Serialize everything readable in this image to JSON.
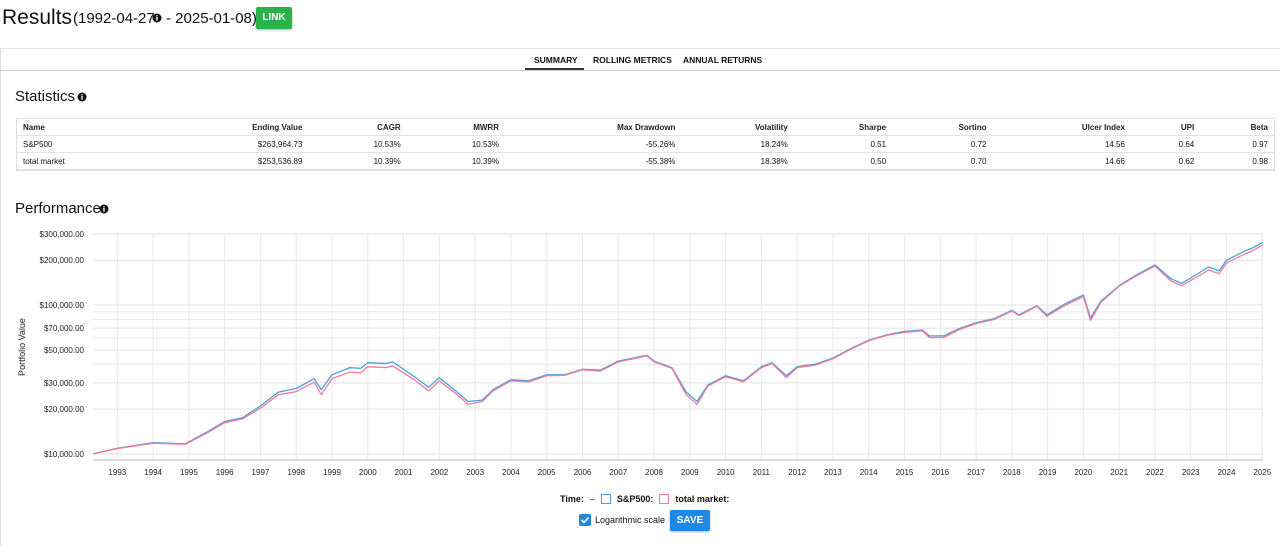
{
  "header": {
    "title": "Results",
    "range_start": "(1992-04-27",
    "range_end": "- 2025-01-08)",
    "link_button": "LINK"
  },
  "tabs": [
    "SUMMARY",
    "ROLLING METRICS",
    "ANNUAL RETURNS"
  ],
  "statistics": {
    "title": "Statistics",
    "table": {
      "columns": [
        "Name",
        "Ending Value",
        "CAGR",
        "MWRR",
        "Max Drawdown",
        "Volatility",
        "Sharpe",
        "Sortino",
        "Ulcer Index",
        "UPI",
        "Beta"
      ],
      "rows": [
        [
          "S&P500",
          "$263,964.73",
          "10.53%",
          "10.53%",
          "-55.26%",
          "18.24%",
          "0.51",
          "0.72",
          "14.56",
          "0.64",
          "0.97"
        ],
        [
          "total market",
          "$253,536.89",
          "10.39%",
          "10.39%",
          "-55.38%",
          "18.38%",
          "0.50",
          "0.70",
          "14.66",
          "0.62",
          "0.98"
        ]
      ]
    }
  },
  "performance": {
    "title": "Performance"
  },
  "chart_data": {
    "type": "line",
    "y_label": "Portfolio Value",
    "log_scale": true,
    "grid": true,
    "x": [
      1992.32,
      1993,
      1994,
      1994.9,
      1995.5,
      1996,
      1996.5,
      1997,
      1997.5,
      1998,
      1998.5,
      1998.7,
      1999,
      1999.5,
      1999.8,
      2000,
      2000.5,
      2000.7,
      2001,
      2001.3,
      2001.7,
      2002,
      2002.5,
      2002.8,
      2003.2,
      2003.5,
      2004,
      2004.5,
      2005,
      2005.5,
      2006,
      2006.5,
      2007,
      2007.8,
      2008,
      2008.5,
      2008.9,
      2009.2,
      2009.5,
      2010,
      2010.5,
      2011,
      2011.3,
      2011.7,
      2012,
      2012.5,
      2013,
      2013.5,
      2014,
      2014.5,
      2015,
      2015.5,
      2015.7,
      2016.1,
      2016.5,
      2017,
      2017.5,
      2018,
      2018.2,
      2018.7,
      2018.98,
      2019.5,
      2020,
      2020.2,
      2020.5,
      2021,
      2021.5,
      2022,
      2022.45,
      2022.75,
      2023,
      2023.5,
      2023.8,
      2024,
      2024.5,
      2024.7,
      2025.02
    ],
    "series": [
      {
        "name": "S&P500:",
        "color": "#4a9fe0",
        "values": [
          10000,
          10900,
          11900,
          11700,
          14000,
          16500,
          17500,
          21000,
          26000,
          27500,
          32000,
          27000,
          34000,
          38000,
          37500,
          41000,
          40500,
          41500,
          37000,
          33000,
          28000,
          32500,
          26000,
          22500,
          23000,
          27000,
          31500,
          31000,
          34000,
          34000,
          37000,
          36500,
          42000,
          46000,
          42000,
          38000,
          26000,
          22500,
          29000,
          33500,
          31000,
          38500,
          41000,
          33500,
          38500,
          40000,
          44000,
          51000,
          58000,
          63000,
          66500,
          68000,
          62000,
          62000,
          69000,
          76000,
          81000,
          92000,
          86000,
          99000,
          86000,
          102000,
          117000,
          82000,
          107000,
          135000,
          160000,
          186000,
          150000,
          140000,
          152000,
          180000,
          170000,
          200000,
          230000,
          240000,
          263965
        ]
      },
      {
        "name": "total market:",
        "color": "#f27a9b",
        "values": [
          10000,
          10850,
          11800,
          11600,
          13800,
          16200,
          17200,
          20300,
          25000,
          26200,
          30300,
          25000,
          32000,
          35500,
          35000,
          38500,
          38000,
          39000,
          35000,
          31500,
          26500,
          31000,
          25000,
          21500,
          22500,
          26500,
          31000,
          30500,
          33500,
          33700,
          36700,
          36000,
          41500,
          45500,
          41500,
          37500,
          25000,
          21500,
          28500,
          33000,
          30500,
          38000,
          40500,
          32500,
          38000,
          39500,
          43500,
          50500,
          57500,
          62500,
          65500,
          67000,
          60500,
          60500,
          68000,
          75000,
          80000,
          91000,
          85000,
          98000,
          84000,
          100000,
          114000,
          79000,
          105000,
          134000,
          158000,
          183000,
          145000,
          135000,
          146000,
          172000,
          162000,
          192000,
          220000,
          230000,
          253537
        ]
      }
    ],
    "xlim": [
      1992.32,
      2025.02
    ],
    "xticks": [
      1993,
      1994,
      1995,
      1996,
      1997,
      1998,
      1999,
      2000,
      2001,
      2002,
      2003,
      2004,
      2005,
      2006,
      2007,
      2008,
      2009,
      2010,
      2011,
      2012,
      2013,
      2014,
      2015,
      2016,
      2017,
      2018,
      2019,
      2020,
      2021,
      2022,
      2023,
      2024,
      2025
    ],
    "ylim": [
      9100,
      300000
    ],
    "yticks": [
      {
        "value": 10000,
        "label": "$10,000.00"
      },
      {
        "value": 20000,
        "label": "$20,000.00"
      },
      {
        "value": 30000,
        "label": "$30,000.00"
      },
      {
        "value": 50000,
        "label": "$50,000.00"
      },
      {
        "value": 70000,
        "label": "$70,000.00"
      },
      {
        "value": 100000,
        "label": "$100,000.00"
      },
      {
        "value": 200000,
        "label": "$200,000.00"
      },
      {
        "value": 300000,
        "label": "$300,000.00"
      }
    ],
    "y_minor_gridlines": [
      40000,
      60000,
      80000,
      90000
    ],
    "legend": {
      "time_label": "Time:",
      "time_value": "–"
    }
  },
  "controls": {
    "log_checkbox_label": "Logarithmic scale",
    "save_button": "SAVE"
  }
}
